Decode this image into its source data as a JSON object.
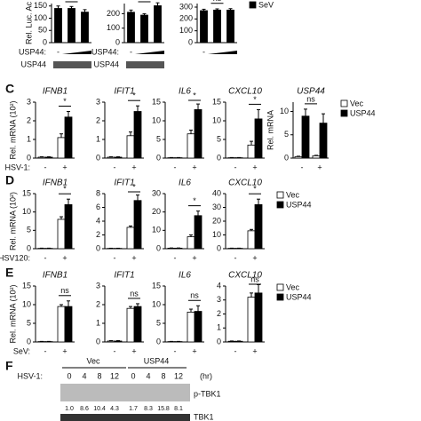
{
  "chart_data": [
    {
      "type": "bar",
      "ylabel": "Rel. Luc. Ac",
      "ylim": [
        0,
        160
      ],
      "yticks": [
        0,
        50,
        100,
        150
      ],
      "categories": [
        "-",
        null,
        null
      ],
      "series": [
        {
          "name": "SeV",
          "color": "#000000",
          "values": [
            140,
            140,
            125
          ],
          "errors": [
            10,
            8,
            10
          ]
        }
      ],
      "significance": "ns.",
      "treatment_label": "USP44:",
      "blot_label": "USP44"
    },
    {
      "type": "bar",
      "ylim": [
        0,
        270
      ],
      "yticks": [
        0,
        100,
        200
      ],
      "categories": [
        "-",
        null,
        null
      ],
      "series": [
        {
          "name": "SeV",
          "color": "#000000",
          "values": [
            210,
            190,
            255
          ],
          "errors": [
            15,
            10,
            20
          ]
        }
      ],
      "significance": "ns",
      "treatment_label": "USP44:",
      "blot_label": "USP44"
    },
    {
      "type": "bar",
      "ylim": [
        0,
        330
      ],
      "yticks": [
        0,
        100,
        200,
        300
      ],
      "categories": [
        "-",
        null,
        null
      ],
      "series": [
        {
          "name": "SeV",
          "color": "#000000",
          "values": [
            270,
            275,
            275
          ],
          "errors": [
            12,
            10,
            12
          ]
        }
      ],
      "significance": "ns",
      "legend": true
    },
    {
      "type": "bar",
      "panel": "C",
      "title": "IFNB1",
      "ylabel": "Rel. mRNA (10²)",
      "treatment_label": "HSV-1:",
      "ylim": [
        0,
        3
      ],
      "yticks": [
        0,
        1,
        2,
        3
      ],
      "categories": [
        "-",
        "+"
      ],
      "series": [
        {
          "name": "Vec",
          "color": "#ffffff",
          "values": [
            0.05,
            1.1
          ],
          "errors": [
            0.02,
            0.2
          ]
        },
        {
          "name": "USP44",
          "color": "#000000",
          "values": [
            0.05,
            2.2
          ],
          "errors": [
            0.02,
            0.3
          ]
        }
      ],
      "significance": "*"
    },
    {
      "type": "bar",
      "title": "IFIT1",
      "ylim": [
        0,
        3
      ],
      "yticks": [
        0,
        1,
        2,
        3
      ],
      "categories": [
        "-",
        "+"
      ],
      "series": [
        {
          "name": "Vec",
          "color": "#ffffff",
          "values": [
            0.05,
            1.2
          ],
          "errors": [
            0.02,
            0.2
          ]
        },
        {
          "name": "USP44",
          "color": "#000000",
          "values": [
            0.05,
            2.5
          ],
          "errors": [
            0.02,
            0.3
          ]
        }
      ],
      "significance": "*"
    },
    {
      "type": "bar",
      "title": "IL6",
      "ylim": [
        0,
        15
      ],
      "yticks": [
        0,
        5,
        10,
        15
      ],
      "categories": [
        "-",
        "+"
      ],
      "series": [
        {
          "name": "Vec",
          "color": "#ffffff",
          "values": [
            0.1,
            6.5
          ],
          "errors": [
            0.05,
            1
          ]
        },
        {
          "name": "USP44",
          "color": "#000000",
          "values": [
            0.1,
            13
          ],
          "errors": [
            0.05,
            1.5
          ]
        }
      ],
      "significance": "*"
    },
    {
      "type": "bar",
      "title": "CXCL10",
      "ylim": [
        0,
        15
      ],
      "yticks": [
        0,
        5,
        10,
        15
      ],
      "categories": [
        "-",
        "+"
      ],
      "series": [
        {
          "name": "Vec",
          "color": "#ffffff",
          "values": [
            0.1,
            3.5
          ],
          "errors": [
            0.05,
            1
          ]
        },
        {
          "name": "USP44",
          "color": "#000000",
          "values": [
            0.1,
            10.5
          ],
          "errors": [
            0.05,
            2.5
          ]
        }
      ],
      "significance": "*"
    },
    {
      "type": "bar",
      "title": "USP44",
      "ylabel": "Rel. mRNA",
      "ylim": [
        0,
        12
      ],
      "yticks": [
        0,
        5,
        10
      ],
      "categories": [
        "-",
        "+"
      ],
      "series": [
        {
          "name": "Vec",
          "color": "#ffffff",
          "values": [
            0.3,
            0.5
          ],
          "errors": [
            0.1,
            0.1
          ]
        },
        {
          "name": "USP44",
          "color": "#000000",
          "values": [
            9,
            7.5
          ],
          "errors": [
            1.5,
            2
          ]
        }
      ],
      "significance": "ns",
      "legend": true
    },
    {
      "type": "bar",
      "panel": "D",
      "title": "IFNB1",
      "ylabel": "Rel. mRNA (10²)",
      "treatment_label": "HSV120:",
      "ylim": [
        0,
        15
      ],
      "yticks": [
        0,
        5,
        10,
        15
      ],
      "categories": [
        "-",
        "+"
      ],
      "series": [
        {
          "name": "Vec",
          "color": "#ffffff",
          "values": [
            0.1,
            8
          ],
          "errors": [
            0.05,
            0.7
          ]
        },
        {
          "name": "USP44",
          "color": "#000000",
          "values": [
            0.1,
            12
          ],
          "errors": [
            0.05,
            1.5
          ]
        }
      ],
      "significance": "*"
    },
    {
      "type": "bar",
      "title": "IFIT1",
      "ylim": [
        0,
        8
      ],
      "yticks": [
        0,
        2,
        4,
        6,
        8
      ],
      "categories": [
        "-",
        "+"
      ],
      "series": [
        {
          "name": "Vec",
          "color": "#ffffff",
          "values": [
            0.05,
            3.1
          ],
          "errors": [
            0.02,
            0.2
          ]
        },
        {
          "name": "USP44",
          "color": "#000000",
          "values": [
            0.05,
            7
          ],
          "errors": [
            0.02,
            0.8
          ]
        }
      ],
      "significance": "*"
    },
    {
      "type": "bar",
      "title": "IL6",
      "ylim": [
        0,
        30
      ],
      "yticks": [
        0,
        10,
        20,
        30
      ],
      "categories": [
        "-",
        "+"
      ],
      "series": [
        {
          "name": "Vec",
          "color": "#ffffff",
          "values": [
            0.3,
            6.5
          ],
          "errors": [
            0.1,
            1
          ]
        },
        {
          "name": "USP44",
          "color": "#000000",
          "values": [
            0.3,
            18
          ],
          "errors": [
            0.1,
            2.5
          ]
        }
      ],
      "significance": "*"
    },
    {
      "type": "bar",
      "title": "CXCL10",
      "ylim": [
        0,
        40
      ],
      "yticks": [
        0,
        10,
        20,
        30,
        40
      ],
      "categories": [
        "-",
        "+"
      ],
      "series": [
        {
          "name": "Vec",
          "color": "#ffffff",
          "values": [
            0.3,
            13
          ],
          "errors": [
            0.1,
            1
          ]
        },
        {
          "name": "USP44",
          "color": "#000000",
          "values": [
            0.3,
            32
          ],
          "errors": [
            0.1,
            4
          ]
        }
      ],
      "significance": "*",
      "legend": true
    },
    {
      "type": "bar",
      "panel": "E",
      "title": "IFNB1",
      "ylabel": "Rel. mRNA (10²)",
      "treatment_label": "SeV:",
      "ylim": [
        0,
        15
      ],
      "yticks": [
        0,
        5,
        10,
        15
      ],
      "categories": [
        "-",
        "+"
      ],
      "series": [
        {
          "name": "Vec",
          "color": "#ffffff",
          "values": [
            0.1,
            9.5
          ],
          "errors": [
            0.05,
            0.5
          ]
        },
        {
          "name": "USP44",
          "color": "#000000",
          "values": [
            0.1,
            9.5
          ],
          "errors": [
            0.05,
            1.5
          ]
        }
      ],
      "significance": "ns"
    },
    {
      "type": "bar",
      "title": "IFIT1",
      "ylim": [
        0,
        3
      ],
      "yticks": [
        0,
        1,
        2,
        3
      ],
      "categories": [
        "-",
        "+"
      ],
      "series": [
        {
          "name": "Vec",
          "color": "#ffffff",
          "values": [
            0.05,
            1.8
          ],
          "errors": [
            0.02,
            0.1
          ]
        },
        {
          "name": "USP44",
          "color": "#000000",
          "values": [
            0.05,
            1.9
          ],
          "errors": [
            0.02,
            0.15
          ]
        }
      ],
      "significance": "ns"
    },
    {
      "type": "bar",
      "title": "IL6",
      "ylim": [
        0,
        15
      ],
      "yticks": [
        0,
        5,
        10,
        15
      ],
      "categories": [
        "-",
        "+"
      ],
      "series": [
        {
          "name": "Vec",
          "color": "#ffffff",
          "values": [
            0.1,
            8
          ],
          "errors": [
            0.05,
            0.8
          ]
        },
        {
          "name": "USP44",
          "color": "#000000",
          "values": [
            0.1,
            8.2
          ],
          "errors": [
            0.05,
            1.5
          ]
        }
      ],
      "significance": "ns"
    },
    {
      "type": "bar",
      "title": "CXCL10",
      "ylim": [
        0,
        4
      ],
      "yticks": [
        0,
        1,
        2,
        3,
        4
      ],
      "categories": [
        "-",
        "+"
      ],
      "series": [
        {
          "name": "Vec",
          "color": "#ffffff",
          "values": [
            0.05,
            3.2
          ],
          "errors": [
            0.02,
            0.3
          ]
        },
        {
          "name": "USP44",
          "color": "#000000",
          "values": [
            0.05,
            3.5
          ],
          "errors": [
            0.02,
            0.6
          ]
        }
      ],
      "significance": "ns",
      "legend": true
    }
  ],
  "blot": {
    "panel": "F",
    "treatment_label": "HSV-1:",
    "groups": [
      "Vec",
      "USP44"
    ],
    "lanes": [
      "0",
      "4",
      "8",
      "12",
      "0",
      "4",
      "8",
      "12"
    ],
    "unit": "(hr)",
    "quantities": [
      "1.0",
      "8.6",
      "10.4",
      "4.3",
      "1.7",
      "8.3",
      "15.8",
      "8.1"
    ],
    "rows": [
      "p-TBK1",
      "TBK1"
    ]
  }
}
